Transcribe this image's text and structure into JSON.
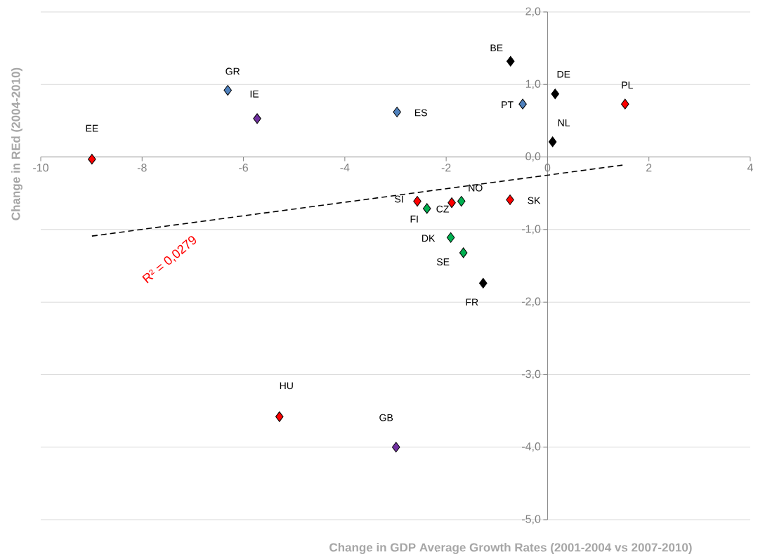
{
  "chart_data": {
    "type": "scatter",
    "xlabel": "Change in GDP Average Growth Rates (2001-2004 vs 2007-2010)",
    "ylabel": "Change in REd (2004-2010)",
    "annotations": [
      "R² = 0,0279"
    ],
    "xlim": [
      -10,
      4
    ],
    "xticks": [
      -10,
      -8,
      -6,
      -4,
      -2,
      0,
      2,
      4
    ],
    "ylim": [
      -5,
      2
    ],
    "yticks": [
      {
        "value": -5,
        "label": "-5,0"
      },
      {
        "value": -4,
        "label": "-4,0"
      },
      {
        "value": -3,
        "label": "-3,0"
      },
      {
        "value": -2,
        "label": "-2,0"
      },
      {
        "value": -1,
        "label": "-1,0"
      },
      {
        "value": 0,
        "label": "0,0"
      },
      {
        "value": 1,
        "label": "1,0"
      },
      {
        "value": 2,
        "label": "2,0"
      }
    ],
    "grid": "y",
    "marker": "diamond",
    "series": [
      {
        "color": "#4f81bd",
        "x": [
          -6.31,
          -2.97,
          -0.49
        ],
        "values": [
          0.92,
          0.62,
          0.73
        ],
        "value_labels": [
          "GR",
          "ES",
          "PT"
        ]
      },
      {
        "color": "#7030a0",
        "x": [
          -5.73,
          -2.99
        ],
        "values": [
          0.53,
          -4.0
        ],
        "value_labels": [
          "IE",
          "GB"
        ]
      },
      {
        "color": "#ff0000",
        "x": [
          -8.99,
          1.53,
          -2.57,
          -1.89,
          -0.74,
          -5.29
        ],
        "values": [
          -0.03,
          0.73,
          -0.61,
          -0.63,
          -0.59,
          -3.58
        ],
        "value_labels": [
          "EE",
          "PL",
          "SI",
          "CZ",
          "SK",
          "HU"
        ]
      },
      {
        "color": "#000000",
        "x": [
          -0.73,
          0.15,
          0.1,
          -1.27
        ],
        "values": [
          1.32,
          0.87,
          0.21,
          -1.74
        ],
        "value_labels": [
          "BE",
          "DE",
          "NL",
          "FR"
        ]
      },
      {
        "color": "#00b050",
        "x": [
          -2.38,
          -1.7,
          -1.91,
          -1.66
        ],
        "values": [
          -0.71,
          -0.61,
          -1.11,
          -1.32
        ],
        "value_labels": [
          "FI",
          "NO",
          "DK",
          "SE"
        ]
      },
      {
        "type": "line",
        "color": "#000000",
        "marker": "none",
        "line_style": "dashed",
        "x": [
          -8.99,
          1.5
        ],
        "values": [
          -1.09,
          -0.11
        ]
      }
    ]
  }
}
